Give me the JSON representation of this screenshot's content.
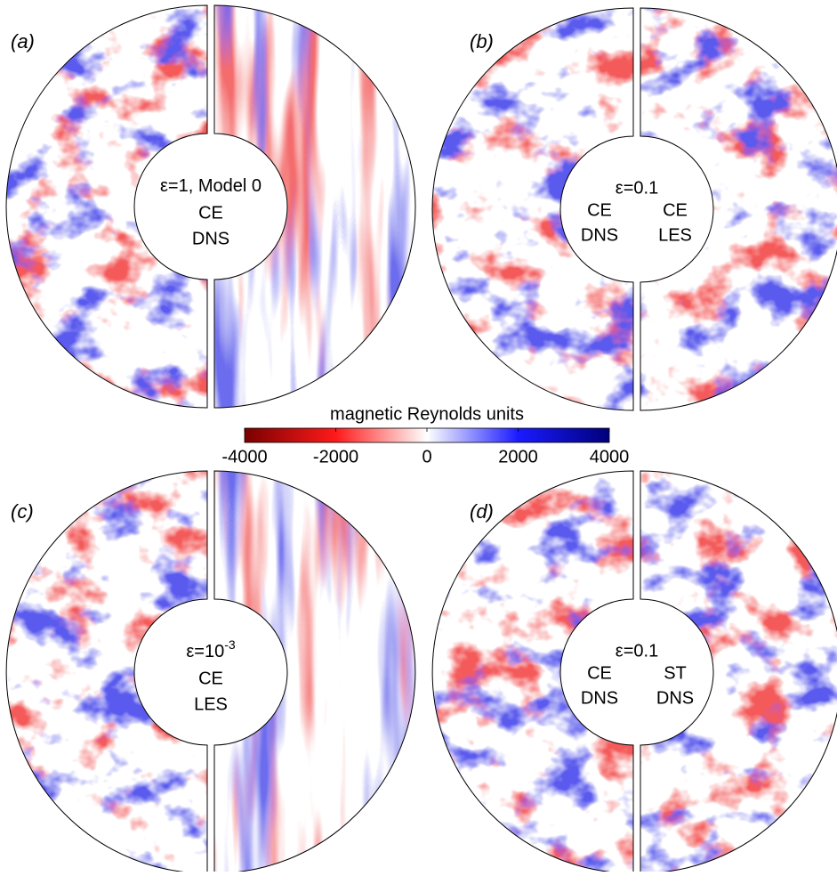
{
  "panels": [
    {
      "label": "(a)",
      "epsilon": "ε=1, Model 0",
      "lines": [
        "CE",
        "DNS"
      ]
    },
    {
      "label": "(b)",
      "epsilon": "ε=0.1",
      "left": [
        "CE",
        "DNS"
      ],
      "right": [
        "CE",
        "LES"
      ]
    },
    {
      "label": "(c)",
      "epsilon": "ε=10",
      "epsilon_exponent": "-3",
      "lines": [
        "CE",
        "LES"
      ]
    },
    {
      "label": "(d)",
      "epsilon": "ε=0.1",
      "left": [
        "CE",
        "DNS"
      ],
      "right": [
        "ST",
        "DNS"
      ]
    }
  ],
  "colorbar": {
    "label": "magnetic Reynolds units",
    "lim": [
      -4000,
      4000
    ],
    "ticks": [
      -4000,
      -2000,
      0,
      2000,
      4000
    ],
    "colors": [
      "#7a0000",
      "#ff1a1a",
      "#ffffff",
      "#1a1aff",
      "#00007a"
    ]
  }
}
